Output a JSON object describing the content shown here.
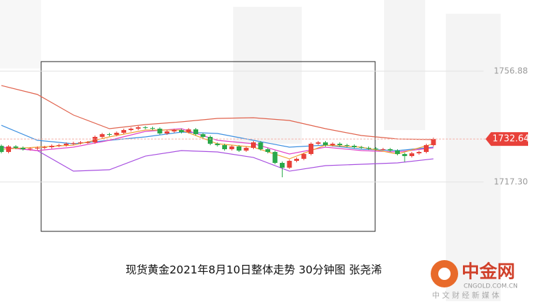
{
  "chart_data": {
    "type": "candlestick",
    "caption": "现货黄金2021年8月10日整体走势  30分钟图 张尧浠",
    "logo": {
      "name": "中金网",
      "site": "CNGOLD.COM.CN",
      "slogan": "中 文 财 经 新 媒 体"
    },
    "ylim": [
      1672.3,
      1782.3
    ],
    "yticks": [
      1756.88,
      {
        "value": 1717.3,
        "label": "1717.30"
      }
    ],
    "last_price": 1732.64,
    "up_color": "#e8413a",
    "down_color": "#2aa84a",
    "open": [
      1730.2,
      1728.03,
      1729.99,
      1729.5,
      1729.01,
      1729.25,
      1729.5,
      1729.74,
      1730.23,
      1730.47,
      1730.96,
      1731.21,
      1731.45,
      1731.45,
      1733.41,
      1734.39,
      1734.14,
      1734.88,
      1735.85,
      1736.34,
      1736.83,
      1736.59,
      1736.34,
      1734.63,
      1735.36,
      1735.85,
      1735.12,
      1736.1,
      1734.39,
      1733.41,
      1730.96,
      1730.47,
      1729.01,
      1729.99,
      1728.52,
      1729.5,
      1731.45,
      1729.01,
      1728.03,
      1724.12,
      1722.41,
      1724.85,
      1725.58,
      1727.3,
      1730.96,
      1731.45,
      1730.47,
      1730.96,
      1730.47,
      1730.23,
      1729.74,
      1729.5,
      1729.25,
      1729.01,
      1729.01,
      1728.52,
      1727.3,
      1726.56,
      1727.54,
      1728.03,
      1730.47
    ],
    "high": [
      1730.7,
      1730.49,
      1730.49,
      1730.0,
      1729.75,
      1730.0,
      1730.24,
      1730.73,
      1730.97,
      1731.46,
      1731.71,
      1731.95,
      1731.95,
      1733.91,
      1734.89,
      1734.89,
      1735.38,
      1736.35,
      1736.84,
      1737.33,
      1737.33,
      1737.09,
      1736.84,
      1735.86,
      1736.35,
      1736.35,
      1736.6,
      1736.6,
      1734.89,
      1733.91,
      1731.46,
      1730.97,
      1730.49,
      1730.49,
      1730.0,
      1731.95,
      1731.95,
      1729.51,
      1728.53,
      1724.62,
      1725.35,
      1726.08,
      1727.8,
      1731.46,
      1731.95,
      1731.95,
      1731.46,
      1731.46,
      1730.97,
      1730.73,
      1730.24,
      1730.0,
      1729.75,
      1729.51,
      1729.51,
      1729.02,
      1727.8,
      1728.04,
      1728.53,
      1730.97,
      1733.14
    ],
    "low": [
      1727.53,
      1727.53,
      1729.0,
      1728.51,
      1728.51,
      1728.75,
      1729.0,
      1729.24,
      1729.73,
      1729.97,
      1730.46,
      1730.71,
      1730.95,
      1730.95,
      1732.91,
      1733.64,
      1733.64,
      1734.38,
      1735.35,
      1735.84,
      1736.09,
      1735.84,
      1734.13,
      1734.13,
      1734.86,
      1734.62,
      1734.62,
      1733.89,
      1732.91,
      1730.46,
      1729.97,
      1728.51,
      1728.51,
      1728.02,
      1728.02,
      1729.0,
      1728.51,
      1727.53,
      1723.62,
      1719.0,
      1721.91,
      1724.35,
      1725.08,
      1726.8,
      1730.46,
      1729.97,
      1729.97,
      1729.97,
      1729.73,
      1729.24,
      1729.0,
      1728.75,
      1728.51,
      1728.51,
      1728.02,
      1726.8,
      1724.5,
      1726.06,
      1727.04,
      1727.53,
      1729.97
    ],
    "close": [
      1728.03,
      1729.99,
      1729.5,
      1729.01,
      1729.25,
      1729.5,
      1729.74,
      1730.23,
      1730.47,
      1730.96,
      1731.21,
      1731.45,
      1731.45,
      1733.41,
      1734.39,
      1734.14,
      1734.88,
      1735.85,
      1736.34,
      1736.83,
      1736.59,
      1736.34,
      1734.63,
      1735.36,
      1735.85,
      1735.12,
      1736.1,
      1734.39,
      1733.41,
      1730.96,
      1730.47,
      1729.01,
      1729.99,
      1728.52,
      1729.5,
      1731.45,
      1729.01,
      1728.03,
      1724.12,
      1722.41,
      1724.85,
      1725.58,
      1727.3,
      1730.96,
      1731.45,
      1730.47,
      1730.96,
      1730.47,
      1730.23,
      1729.74,
      1729.5,
      1729.25,
      1729.01,
      1729.01,
      1728.52,
      1727.3,
      1726.56,
      1727.54,
      1728.03,
      1730.47,
      1732.64
    ],
    "indicator_x": [
      0,
      5,
      10,
      15,
      20,
      25,
      30,
      35,
      40,
      45,
      50,
      55,
      60
    ],
    "lines": [
      {
        "color": "#e0604a",
        "values": [
          1751.75,
          1748.57,
          1741.23,
          1736.34,
          1737.81,
          1738.79,
          1740.01,
          1740.25,
          1739.28,
          1736.34,
          1733.9,
          1732.67,
          1732.43
        ]
      },
      {
        "color": "#a64de0",
        "values": [
          1729.74,
          1728.52,
          1721.18,
          1721.67,
          1726.56,
          1728.52,
          1728.03,
          1726.07,
          1721.18,
          1723.14,
          1723.63,
          1724.12,
          1725.58
        ]
      },
      {
        "color": "#3a8ee0",
        "values": [
          1737.56,
          1732.19,
          1730.96,
          1732.19,
          1733.41,
          1735.12,
          1734.63,
          1732.19,
          1729.74,
          1730.47,
          1729.01,
          1728.52,
          1729.74
        ]
      },
      {
        "color": "#e040c8",
        "values": [
          1729.74,
          1728.52,
          1729.74,
          1732.19,
          1735.36,
          1736.34,
          1732.19,
          1730.96,
          1727.3,
          1729.74,
          1728.52,
          1728.03,
          1729.5
        ]
      },
      {
        "color": "#f0a030",
        "values": [
          1729.01,
          1729.74,
          1730.47,
          1733.41,
          1735.85,
          1735.85,
          1730.96,
          1729.74,
          1725.58,
          1730.47,
          1729.74,
          1727.3,
          1730.96
        ]
      }
    ]
  }
}
